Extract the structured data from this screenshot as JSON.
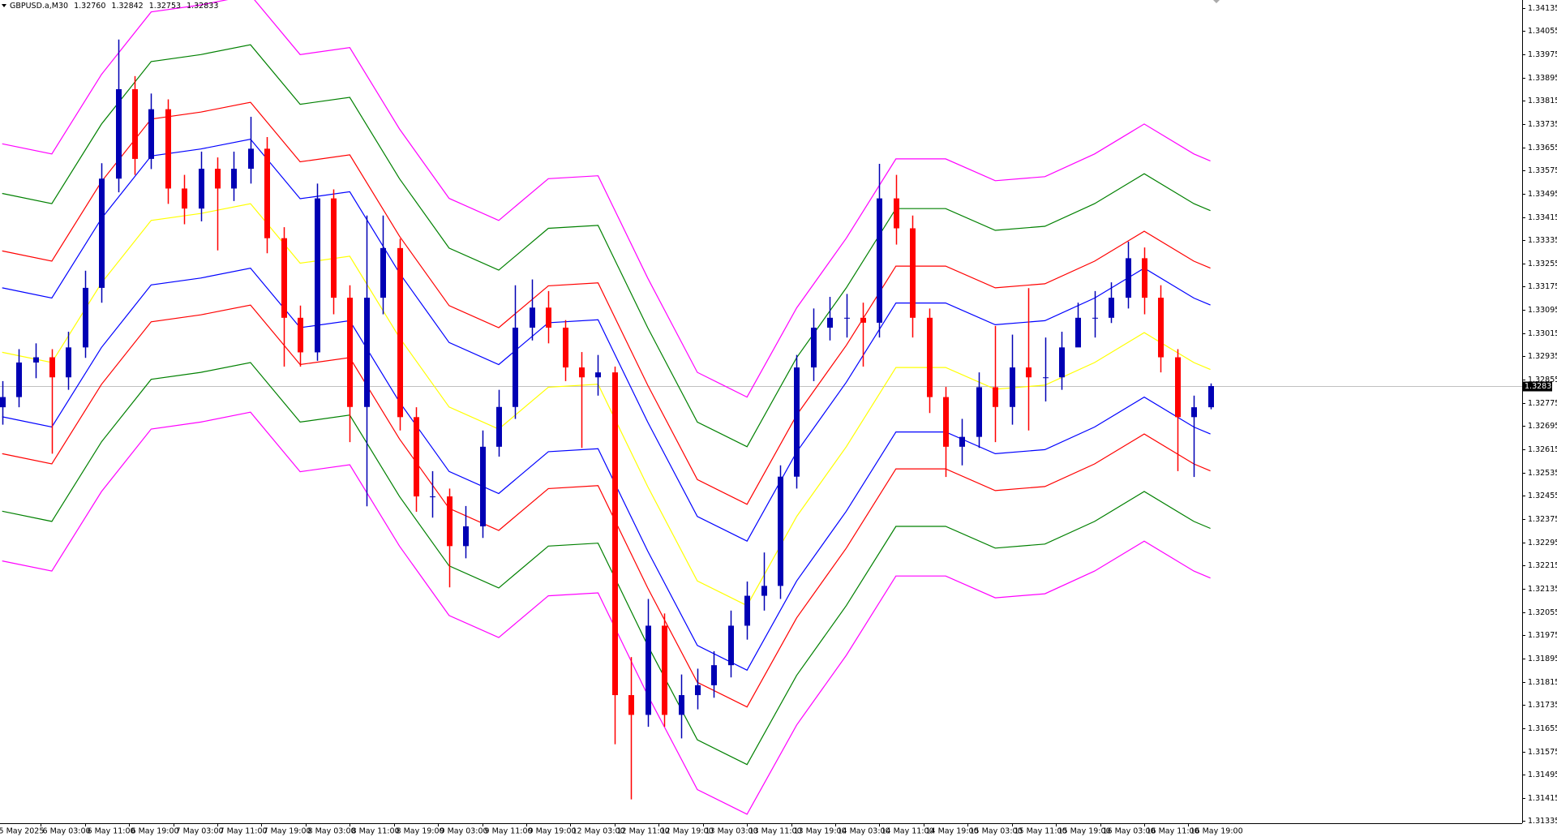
{
  "chart_data": {
    "type": "candlestick",
    "header": {
      "symbol": "GBPUSD.a,M30",
      "open": "1.32760",
      "high": "1.32842",
      "low": "1.32753",
      "close": "1.32833"
    },
    "xlim": [
      1.2,
      553
    ],
    "ylim": [
      1.31328,
      1.34162
    ],
    "xticks": [
      {
        "value": 0,
        "label": "5 May 2025"
      },
      {
        "value": 16,
        "label": "6 May 03:00"
      },
      {
        "value": 32,
        "label": "6 May 11:00"
      },
      {
        "value": 48,
        "label": "6 May 19:00"
      },
      {
        "value": 64,
        "label": "7 May 03:00"
      },
      {
        "value": 80,
        "label": "7 May 11:00"
      },
      {
        "value": 96,
        "label": "7 May 19:00"
      },
      {
        "value": 112,
        "label": "8 May 03:00"
      },
      {
        "value": 128,
        "label": "8 May 11:00"
      },
      {
        "value": 144,
        "label": "8 May 19:00"
      },
      {
        "value": 160,
        "label": "9 May 03:00"
      },
      {
        "value": 176,
        "label": "9 May 11:00"
      },
      {
        "value": 192,
        "label": "9 May 19:00"
      },
      {
        "value": 208,
        "label": "12 May 03:00"
      },
      {
        "value": 224,
        "label": "12 May 11:00"
      },
      {
        "value": 240,
        "label": "12 May 19:00"
      },
      {
        "value": 256,
        "label": "13 May 03:00"
      },
      {
        "value": 272,
        "label": "13 May 11:00"
      },
      {
        "value": 288,
        "label": "13 May 19:00"
      },
      {
        "value": 304,
        "label": "14 May 03:00"
      },
      {
        "value": 320,
        "label": "14 May 11:00"
      },
      {
        "value": 336,
        "label": "14 May 19:00"
      },
      {
        "value": 352,
        "label": "15 May 03:00"
      },
      {
        "value": 368,
        "label": "15 May 11:00"
      },
      {
        "value": 384,
        "label": "15 May 19:00"
      },
      {
        "value": 400,
        "label": "16 May 03:00"
      },
      {
        "value": 416,
        "label": "16 May 11:00"
      },
      {
        "value": 432,
        "label": "16 May 19:00"
      }
    ],
    "yticks": [
      1.34135,
      1.34055,
      1.33975,
      1.33895,
      1.33815,
      1.33735,
      1.33655,
      1.33575,
      1.33495,
      1.33415,
      1.33335,
      1.33255,
      1.33175,
      1.33095,
      1.33015,
      1.32935,
      1.32855,
      1.32775,
      1.32695,
      1.32615,
      1.32535,
      1.32455,
      1.32375,
      1.32295,
      1.32215,
      1.32135,
      1.32055,
      1.31975,
      1.31895,
      1.31815,
      1.31735,
      1.31655,
      1.31575,
      1.31495,
      1.31415,
      1.31335
    ],
    "current_price": 1.32833,
    "up_color": "#0000b4",
    "down_color": "#ff0000",
    "x": [
      2,
      8,
      14,
      20,
      26,
      32,
      38,
      44,
      50,
      56,
      62,
      68,
      74,
      80,
      86,
      92,
      98,
      104,
      110,
      116,
      122,
      128,
      134,
      140,
      146,
      152,
      158,
      164,
      170,
      176,
      182,
      188,
      194,
      200,
      206,
      212,
      218,
      224,
      230,
      236,
      242,
      248,
      254,
      260,
      266,
      272,
      278,
      284,
      290,
      296,
      302,
      308,
      314,
      320,
      326,
      332,
      338,
      344,
      350,
      356,
      362,
      368,
      374,
      380,
      386,
      392,
      398,
      404,
      410,
      416,
      422,
      428,
      434,
      440
    ],
    "open": [
      1.3276,
      1.32795,
      1.32914,
      1.32932,
      1.32863,
      1.32966,
      1.33171,
      1.33547,
      1.33855,
      1.33615,
      1.33786,
      1.33513,
      1.33444,
      1.33581,
      1.33513,
      1.33581,
      1.3365,
      1.33342,
      1.33068,
      1.32949,
      1.33479,
      1.33137,
      1.32761,
      1.33137,
      1.33308,
      1.32726,
      1.32453,
      1.32453,
      1.32282,
      1.3235,
      1.32624,
      1.32761,
      1.33034,
      1.33103,
      1.33034,
      1.32897,
      1.32863,
      1.3288,
      1.31769,
      1.31701,
      1.32008,
      1.31701,
      1.31769,
      1.31803,
      1.31872,
      1.32008,
      1.32111,
      1.32145,
      1.32521,
      1.32897,
      1.33034,
      1.33068,
      1.33068,
      1.33051,
      1.33479,
      1.33376,
      1.33068,
      1.32795,
      1.32624,
      1.32658,
      1.32829,
      1.32761,
      1.32897,
      1.32863,
      1.32863,
      1.32966,
      1.33068,
      1.33068,
      1.33137,
      1.33273,
      1.33137,
      1.32932,
      1.32726,
      1.3276
    ],
    "high": [
      1.3285,
      1.3296,
      1.3298,
      1.3296,
      1.3302,
      1.3323,
      1.336,
      1.34026,
      1.339,
      1.3384,
      1.3382,
      1.3356,
      1.3364,
      1.3362,
      1.3364,
      1.3376,
      1.3369,
      1.3338,
      1.3311,
      1.3353,
      1.3351,
      1.3318,
      1.3342,
      1.3342,
      1.3334,
      1.3276,
      1.3254,
      1.3248,
      1.3242,
      1.3268,
      1.3282,
      1.3318,
      1.332,
      1.3316,
      1.3306,
      1.3295,
      1.3294,
      1.329,
      1.319,
      1.321,
      1.3205,
      1.3184,
      1.3186,
      1.3192,
      1.3206,
      1.3216,
      1.3226,
      1.3256,
      1.3294,
      1.331,
      1.3314,
      1.3315,
      1.3312,
      1.33598,
      1.3356,
      1.3342,
      1.331,
      1.3283,
      1.3272,
      1.3288,
      1.3304,
      1.3301,
      1.3317,
      1.33,
      1.3302,
      1.3312,
      1.3316,
      1.3319,
      1.3333,
      1.3331,
      1.3318,
      1.3296,
      1.328,
      1.32842
    ],
    "low": [
      1.327,
      1.3276,
      1.3286,
      1.326,
      1.3282,
      1.3293,
      1.3312,
      1.335,
      1.3356,
      1.3358,
      1.3346,
      1.3339,
      1.334,
      1.333,
      1.3347,
      1.3353,
      1.3329,
      1.329,
      1.329,
      1.3292,
      1.3308,
      1.3264,
      1.32419,
      1.3308,
      1.3268,
      1.324,
      1.3238,
      1.3214,
      1.3224,
      1.3231,
      1.3259,
      1.3272,
      1.3299,
      1.3298,
      1.3285,
      1.3262,
      1.328,
      1.316,
      1.3141,
      1.3166,
      1.3166,
      1.3162,
      1.3172,
      1.3176,
      1.3183,
      1.3196,
      1.3206,
      1.321,
      1.3248,
      1.3285,
      1.3299,
      1.33,
      1.329,
      1.33,
      1.3332,
      1.33,
      1.3274,
      1.3252,
      1.3256,
      1.3262,
      1.3264,
      1.327,
      1.3268,
      1.3278,
      1.3282,
      1.3298,
      1.33,
      1.3305,
      1.331,
      1.3308,
      1.3288,
      1.3254,
      1.3252,
      1.32753
    ],
    "close": [
      1.32795,
      1.32914,
      1.32932,
      1.32863,
      1.32966,
      1.33171,
      1.33547,
      1.33855,
      1.33615,
      1.33786,
      1.33513,
      1.33444,
      1.33581,
      1.33513,
      1.33581,
      1.3365,
      1.33342,
      1.33068,
      1.32949,
      1.33479,
      1.33137,
      1.32761,
      1.33137,
      1.33308,
      1.32726,
      1.32453,
      1.32453,
      1.32282,
      1.3235,
      1.32624,
      1.32761,
      1.33034,
      1.33103,
      1.33034,
      1.32897,
      1.32863,
      1.3288,
      1.31769,
      1.31701,
      1.32008,
      1.31701,
      1.31769,
      1.31803,
      1.31872,
      1.32008,
      1.32111,
      1.32145,
      1.32521,
      1.32897,
      1.33034,
      1.33068,
      1.33068,
      1.33051,
      1.33479,
      1.33376,
      1.33068,
      1.32795,
      1.32624,
      1.32658,
      1.32829,
      1.32761,
      1.32897,
      1.32863,
      1.32863,
      1.32966,
      1.33068,
      1.33068,
      1.33137,
      1.33273,
      1.33137,
      1.32932,
      1.32726,
      1.3276,
      1.32833
    ],
    "line_x": [
      2,
      20,
      38,
      56,
      74,
      92,
      110,
      128,
      146,
      164,
      182,
      200,
      218,
      236,
      254,
      272,
      290,
      308,
      326,
      344,
      362,
      380,
      398,
      416,
      434,
      440
    ],
    "lines": [
      {
        "color": "#ff00ff",
        "values": [
          1.33667,
          1.33632,
          1.33906,
          1.34121,
          1.34145,
          1.34179,
          1.33974,
          1.33998,
          1.33718,
          1.33479,
          1.33403,
          1.33547,
          1.33557,
          1.33205,
          1.3288,
          1.32795,
          1.33102,
          1.33342,
          1.33615,
          1.33615,
          1.3354,
          1.33554,
          1.33632,
          1.33735,
          1.33632,
          1.33608
        ]
      },
      {
        "color": "#008000",
        "values": [
          1.33496,
          1.33461,
          1.33735,
          1.3395,
          1.33974,
          1.34008,
          1.33803,
          1.33827,
          1.33547,
          1.33308,
          1.33232,
          1.33376,
          1.33386,
          1.33034,
          1.32709,
          1.32624,
          1.32931,
          1.33171,
          1.33444,
          1.33444,
          1.33369,
          1.33383,
          1.33461,
          1.33564,
          1.33461,
          1.33437
        ]
      },
      {
        "color": "#ff0000",
        "values": [
          1.33298,
          1.33263,
          1.33537,
          1.33752,
          1.33776,
          1.3381,
          1.33605,
          1.33629,
          1.33349,
          1.3311,
          1.33034,
          1.33178,
          1.33188,
          1.32836,
          1.32511,
          1.32426,
          1.32733,
          1.32973,
          1.33246,
          1.33246,
          1.33171,
          1.33185,
          1.33263,
          1.33366,
          1.33263,
          1.33239
        ]
      },
      {
        "color": "#0000ff",
        "values": [
          1.33171,
          1.33136,
          1.3341,
          1.33625,
          1.33649,
          1.33683,
          1.33478,
          1.33502,
          1.33222,
          1.32983,
          1.32907,
          1.33051,
          1.33061,
          1.32709,
          1.32384,
          1.32299,
          1.32606,
          1.32846,
          1.33119,
          1.33119,
          1.33044,
          1.33058,
          1.33136,
          1.33239,
          1.33136,
          1.33112
        ]
      },
      {
        "color": "#ffff00",
        "values": [
          1.32949,
          1.32914,
          1.33188,
          1.33403,
          1.33427,
          1.33461,
          1.33256,
          1.3328,
          1.33,
          1.32761,
          1.32685,
          1.32829,
          1.32839,
          1.32487,
          1.32162,
          1.32077,
          1.32384,
          1.32624,
          1.32897,
          1.32897,
          1.32822,
          1.32836,
          1.32914,
          1.33017,
          1.32914,
          1.3289
        ]
      },
      {
        "color": "#0000ff",
        "values": [
          1.32727,
          1.32692,
          1.32966,
          1.33181,
          1.33205,
          1.33239,
          1.33034,
          1.33058,
          1.32778,
          1.32539,
          1.32463,
          1.32607,
          1.32617,
          1.32265,
          1.3194,
          1.31855,
          1.32162,
          1.32402,
          1.32675,
          1.32675,
          1.326,
          1.32614,
          1.32692,
          1.32795,
          1.32692,
          1.32668
        ]
      },
      {
        "color": "#ff0000",
        "values": [
          1.326,
          1.32565,
          1.32839,
          1.33054,
          1.33078,
          1.33112,
          1.32907,
          1.32931,
          1.32651,
          1.32412,
          1.32336,
          1.3248,
          1.3249,
          1.32138,
          1.31813,
          1.31728,
          1.32035,
          1.32275,
          1.32548,
          1.32548,
          1.32473,
          1.32487,
          1.32565,
          1.32668,
          1.32565,
          1.32541
        ]
      },
      {
        "color": "#008000",
        "values": [
          1.32402,
          1.32367,
          1.32641,
          1.32856,
          1.3288,
          1.32914,
          1.32709,
          1.32733,
          1.32453,
          1.32214,
          1.32138,
          1.32282,
          1.32292,
          1.3194,
          1.31615,
          1.3153,
          1.31837,
          1.32077,
          1.3235,
          1.3235,
          1.32275,
          1.32289,
          1.32367,
          1.3247,
          1.32367,
          1.32343
        ]
      },
      {
        "color": "#ff00ff",
        "values": [
          1.32231,
          1.32196,
          1.3247,
          1.32685,
          1.32709,
          1.32743,
          1.32538,
          1.32562,
          1.32282,
          1.32043,
          1.31967,
          1.32111,
          1.32121,
          1.31769,
          1.31444,
          1.31359,
          1.31666,
          1.31906,
          1.32179,
          1.32179,
          1.32104,
          1.32118,
          1.32196,
          1.32299,
          1.32196,
          1.32172
        ]
      }
    ]
  }
}
